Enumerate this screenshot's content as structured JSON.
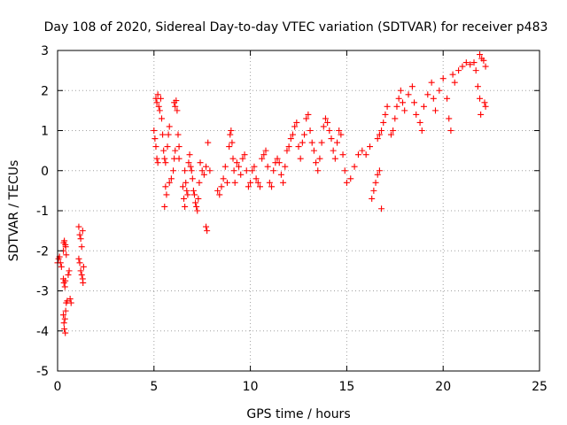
{
  "chart_data": {
    "type": "scatter",
    "title": "Day 108 of 2020, Sidereal Day-to-day VTEC variation (SDTVAR) for receiver p483",
    "xlabel": "GPS time / hours",
    "ylabel": "SDTVAR / TECUs",
    "xlim": [
      0,
      25
    ],
    "ylim": [
      -5,
      3
    ],
    "xticks": [
      0,
      5,
      10,
      15,
      20,
      25
    ],
    "xtick_labels": [
      "0",
      "5",
      "10",
      "15",
      "20",
      "25"
    ],
    "yticks": [
      -5,
      -4,
      -3,
      -2,
      -1,
      0,
      1,
      2,
      3
    ],
    "ytick_labels": [
      "-5",
      "-4",
      "-3",
      "-2",
      "-1",
      "0",
      "1",
      "2",
      "3"
    ],
    "grid": true,
    "marker": "+",
    "series": [
      {
        "name": "SDTVAR",
        "color": "#ff0000",
        "points": [
          [
            0.0,
            -2.3
          ],
          [
            0.05,
            -2.2
          ],
          [
            0.1,
            -2.15
          ],
          [
            0.15,
            -2.3
          ],
          [
            0.2,
            -2.4
          ],
          [
            0.3,
            -2.0
          ],
          [
            0.32,
            -1.8
          ],
          [
            0.35,
            -1.75
          ],
          [
            0.4,
            -1.85
          ],
          [
            0.42,
            -1.9
          ],
          [
            0.45,
            -2.1
          ],
          [
            0.3,
            -2.7
          ],
          [
            0.33,
            -2.8
          ],
          [
            0.38,
            -2.9
          ],
          [
            0.4,
            -2.75
          ],
          [
            0.3,
            -3.6
          ],
          [
            0.33,
            -3.8
          ],
          [
            0.35,
            -3.95
          ],
          [
            0.4,
            -4.05
          ],
          [
            0.38,
            -3.7
          ],
          [
            0.42,
            -3.5
          ],
          [
            0.45,
            -3.3
          ],
          [
            0.5,
            -3.25
          ],
          [
            0.55,
            -2.6
          ],
          [
            0.6,
            -2.5
          ],
          [
            0.65,
            -3.2
          ],
          [
            0.7,
            -3.3
          ],
          [
            1.1,
            -1.4
          ],
          [
            1.15,
            -1.6
          ],
          [
            1.2,
            -1.7
          ],
          [
            1.25,
            -1.9
          ],
          [
            1.3,
            -1.5
          ],
          [
            1.1,
            -2.2
          ],
          [
            1.15,
            -2.3
          ],
          [
            1.2,
            -2.5
          ],
          [
            1.25,
            -2.6
          ],
          [
            1.3,
            -2.7
          ],
          [
            1.32,
            -2.8
          ],
          [
            1.35,
            -2.4
          ],
          [
            5.0,
            1.0
          ],
          [
            5.05,
            0.8
          ],
          [
            5.1,
            0.6
          ],
          [
            5.15,
            0.3
          ],
          [
            5.2,
            0.2
          ],
          [
            5.1,
            1.8
          ],
          [
            5.15,
            1.7
          ],
          [
            5.2,
            1.9
          ],
          [
            5.25,
            1.6
          ],
          [
            5.3,
            1.5
          ],
          [
            5.35,
            1.8
          ],
          [
            5.4,
            1.3
          ],
          [
            5.45,
            0.9
          ],
          [
            5.5,
            0.5
          ],
          [
            5.55,
            0.3
          ],
          [
            5.6,
            0.2
          ],
          [
            5.7,
            0.6
          ],
          [
            5.75,
            0.9
          ],
          [
            5.8,
            1.1
          ],
          [
            5.6,
            -0.4
          ],
          [
            5.65,
            -0.6
          ],
          [
            5.55,
            -0.9
          ],
          [
            5.8,
            -0.3
          ],
          [
            5.9,
            -0.2
          ],
          [
            6.0,
            0.0
          ],
          [
            6.05,
            0.3
          ],
          [
            6.1,
            0.5
          ],
          [
            6.05,
            1.7
          ],
          [
            6.1,
            1.6
          ],
          [
            6.15,
            1.75
          ],
          [
            6.2,
            1.5
          ],
          [
            6.25,
            0.9
          ],
          [
            6.3,
            0.6
          ],
          [
            6.3,
            0.3
          ],
          [
            6.6,
            0.0
          ],
          [
            6.65,
            -0.3
          ],
          [
            6.7,
            -0.5
          ],
          [
            6.75,
            -0.6
          ],
          [
            6.5,
            -0.4
          ],
          [
            6.55,
            -0.7
          ],
          [
            6.6,
            -0.9
          ],
          [
            6.8,
            0.2
          ],
          [
            6.85,
            0.4
          ],
          [
            6.9,
            0.1
          ],
          [
            6.95,
            0.0
          ],
          [
            7.0,
            -0.2
          ],
          [
            7.05,
            -0.5
          ],
          [
            7.1,
            -0.6
          ],
          [
            7.15,
            -0.8
          ],
          [
            7.2,
            -0.9
          ],
          [
            7.25,
            -1.0
          ],
          [
            7.3,
            -0.7
          ],
          [
            7.35,
            -0.3
          ],
          [
            7.4,
            0.2
          ],
          [
            7.5,
            0.0
          ],
          [
            7.6,
            -0.1
          ],
          [
            7.7,
            0.1
          ],
          [
            7.8,
            0.7
          ],
          [
            7.9,
            0.0
          ],
          [
            7.7,
            -1.4
          ],
          [
            7.75,
            -1.5
          ],
          [
            8.3,
            -0.5
          ],
          [
            8.4,
            -0.6
          ],
          [
            8.5,
            -0.4
          ],
          [
            8.6,
            -0.2
          ],
          [
            8.7,
            0.1
          ],
          [
            8.8,
            -0.3
          ],
          [
            8.9,
            0.6
          ],
          [
            8.95,
            0.9
          ],
          [
            9.0,
            1.0
          ],
          [
            9.05,
            0.7
          ],
          [
            9.1,
            0.3
          ],
          [
            9.15,
            0.0
          ],
          [
            9.2,
            -0.3
          ],
          [
            9.3,
            0.2
          ],
          [
            9.4,
            0.1
          ],
          [
            9.5,
            -0.1
          ],
          [
            9.6,
            0.3
          ],
          [
            9.7,
            0.4
          ],
          [
            9.8,
            0.0
          ],
          [
            9.9,
            -0.4
          ],
          [
            10.0,
            -0.3
          ],
          [
            10.1,
            0.0
          ],
          [
            10.2,
            0.1
          ],
          [
            10.3,
            -0.2
          ],
          [
            10.4,
            -0.3
          ],
          [
            10.5,
            -0.4
          ],
          [
            10.6,
            0.3
          ],
          [
            10.7,
            0.4
          ],
          [
            10.8,
            0.5
          ],
          [
            10.9,
            0.1
          ],
          [
            11.0,
            -0.3
          ],
          [
            11.1,
            -0.4
          ],
          [
            11.2,
            0.0
          ],
          [
            11.3,
            0.2
          ],
          [
            11.4,
            0.3
          ],
          [
            11.5,
            0.2
          ],
          [
            11.6,
            -0.1
          ],
          [
            11.7,
            -0.3
          ],
          [
            11.8,
            0.1
          ],
          [
            11.9,
            0.5
          ],
          [
            12.0,
            0.6
          ],
          [
            12.1,
            0.8
          ],
          [
            12.2,
            0.9
          ],
          [
            12.3,
            1.1
          ],
          [
            12.4,
            1.2
          ],
          [
            12.5,
            0.6
          ],
          [
            12.6,
            0.3
          ],
          [
            12.7,
            0.7
          ],
          [
            12.8,
            0.9
          ],
          [
            12.9,
            1.3
          ],
          [
            13.0,
            1.4
          ],
          [
            13.1,
            1.0
          ],
          [
            13.2,
            0.7
          ],
          [
            13.3,
            0.5
          ],
          [
            13.4,
            0.2
          ],
          [
            13.5,
            0.0
          ],
          [
            13.6,
            0.3
          ],
          [
            13.7,
            0.7
          ],
          [
            13.8,
            1.1
          ],
          [
            13.9,
            1.3
          ],
          [
            14.0,
            1.2
          ],
          [
            14.1,
            1.0
          ],
          [
            14.2,
            0.8
          ],
          [
            14.3,
            0.5
          ],
          [
            14.4,
            0.3
          ],
          [
            14.5,
            0.7
          ],
          [
            14.6,
            1.0
          ],
          [
            14.7,
            0.9
          ],
          [
            14.8,
            0.4
          ],
          [
            14.9,
            0.0
          ],
          [
            15.0,
            -0.3
          ],
          [
            15.2,
            -0.2
          ],
          [
            15.4,
            0.1
          ],
          [
            15.6,
            0.4
          ],
          [
            15.8,
            0.5
          ],
          [
            16.0,
            0.4
          ],
          [
            16.2,
            0.6
          ],
          [
            16.3,
            -0.7
          ],
          [
            16.4,
            -0.5
          ],
          [
            16.5,
            -0.3
          ],
          [
            16.6,
            -0.1
          ],
          [
            16.7,
            0.0
          ],
          [
            16.8,
            -0.95
          ],
          [
            16.6,
            0.8
          ],
          [
            16.7,
            0.9
          ],
          [
            16.8,
            1.0
          ],
          [
            16.9,
            1.2
          ],
          [
            17.0,
            1.4
          ],
          [
            17.1,
            1.6
          ],
          [
            17.3,
            0.9
          ],
          [
            17.4,
            1.0
          ],
          [
            17.5,
            1.3
          ],
          [
            17.6,
            1.6
          ],
          [
            17.7,
            1.8
          ],
          [
            17.8,
            2.0
          ],
          [
            17.9,
            1.7
          ],
          [
            18.0,
            1.5
          ],
          [
            18.2,
            1.9
          ],
          [
            18.4,
            2.1
          ],
          [
            18.5,
            1.7
          ],
          [
            18.6,
            1.4
          ],
          [
            18.8,
            1.2
          ],
          [
            18.9,
            1.0
          ],
          [
            19.0,
            1.6
          ],
          [
            19.2,
            1.9
          ],
          [
            19.4,
            2.2
          ],
          [
            19.5,
            1.8
          ],
          [
            19.6,
            1.5
          ],
          [
            19.8,
            2.0
          ],
          [
            20.0,
            2.3
          ],
          [
            20.2,
            1.8
          ],
          [
            20.3,
            1.3
          ],
          [
            20.4,
            1.0
          ],
          [
            20.5,
            2.4
          ],
          [
            20.6,
            2.2
          ],
          [
            20.8,
            2.5
          ],
          [
            21.0,
            2.6
          ],
          [
            21.2,
            2.7
          ],
          [
            21.4,
            2.65
          ],
          [
            21.6,
            2.7
          ],
          [
            21.7,
            2.5
          ],
          [
            21.8,
            2.1
          ],
          [
            21.9,
            1.8
          ],
          [
            21.95,
            1.4
          ],
          [
            21.9,
            2.9
          ],
          [
            22.0,
            2.8
          ],
          [
            22.1,
            2.75
          ],
          [
            22.2,
            2.6
          ],
          [
            22.15,
            1.7
          ],
          [
            22.2,
            1.6
          ]
        ]
      }
    ]
  }
}
